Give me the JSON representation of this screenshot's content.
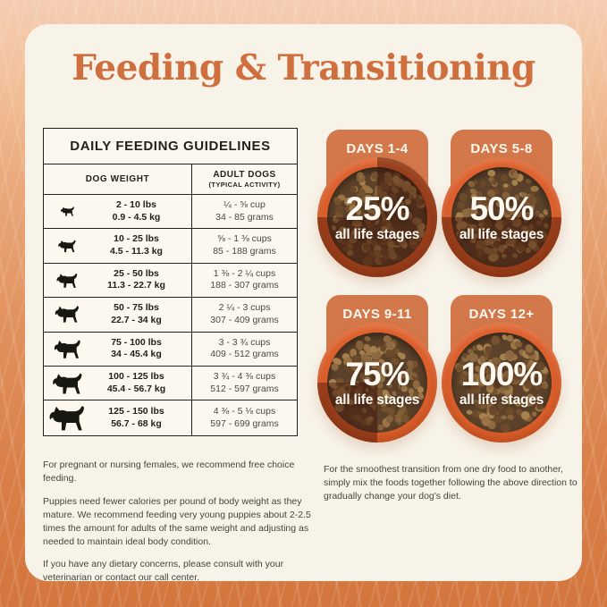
{
  "title": "Feeding & Transitioning",
  "table": {
    "title": "DAILY FEEDING GUIDELINES",
    "col1_header": "DOG WEIGHT",
    "col2_header_line1": "ADULT DOGS",
    "col2_header_line2": "(TYPICAL ACTIVITY)",
    "rows": [
      {
        "weight_lbs": "2 - 10 lbs",
        "weight_kg": "0.9 - 4.5 kg",
        "cups": "¼ - ⅝ cup",
        "grams": "34 - 85 grams"
      },
      {
        "weight_lbs": "10 - 25 lbs",
        "weight_kg": "4.5 - 11.3 kg",
        "cups": "⅝ - 1 ⅜ cups",
        "grams": "85 - 188 grams"
      },
      {
        "weight_lbs": "25 - 50 lbs",
        "weight_kg": "11.3 - 22.7 kg",
        "cups": "1 ⅜ - 2 ¼ cups",
        "grams": "188 - 307 grams"
      },
      {
        "weight_lbs": "50 - 75 lbs",
        "weight_kg": "22.7 - 34 kg",
        "cups": "2 ¼ - 3 cups",
        "grams": "307 - 409 grams"
      },
      {
        "weight_lbs": "75 - 100 lbs",
        "weight_kg": "34 - 45.4 kg",
        "cups": "3 - 3 ¾ cups",
        "grams": "409 - 512 grams"
      },
      {
        "weight_lbs": "100 - 125 lbs",
        "weight_kg": "45.4 - 56.7 kg",
        "cups": "3 ¾ - 4 ⅜ cups",
        "grams": "512 - 597 grams"
      },
      {
        "weight_lbs": "125 - 150 lbs",
        "weight_kg": "56.7 - 68 kg",
        "cups": "4 ⅜ - 5 ⅛ cups",
        "grams": "597 - 699 grams"
      }
    ]
  },
  "transition": {
    "stages": [
      {
        "label": "DAYS 1-4",
        "percent": "25%",
        "percent_value": 25,
        "sublabel": "all life stages"
      },
      {
        "label": "DAYS 5-8",
        "percent": "50%",
        "percent_value": 50,
        "sublabel": "all life stages"
      },
      {
        "label": "DAYS 9-11",
        "percent": "75%",
        "percent_value": 75,
        "sublabel": "all life stages"
      },
      {
        "label": "DAYS 12+",
        "percent": "100%",
        "percent_value": 100,
        "sublabel": "all life stages"
      }
    ]
  },
  "notes_left": [
    "For pregnant or nursing females, we recommend free choice feeding.",
    "Puppies need fewer calories per pound of body weight as they mature. We recommend feeding very young puppies about 2-2.5 times the amount for adults of the same weight and adjusting as needed to maintain ideal body condition.",
    "If you have any dietary concerns, please consult with your veterinarian or contact our call center."
  ],
  "notes_right": "For the smoothest transition from one dry food to another, simply mix the foods together following the above direction to gradually change your dog's diet.",
  "colors": {
    "title_orange": "#d06f3e",
    "badge_orange": "#d2784a",
    "bowl_orange": "#dc5f2c",
    "overlay_dark": "rgba(61,16,4,0.42)",
    "card_cream": "#f8f3e9",
    "table_bg": "#fcf8ef",
    "table_line": "#22201b",
    "background_top": "#f5cdb2",
    "background_bottom": "#d3763e",
    "kibble_bg": "#5c422a"
  }
}
